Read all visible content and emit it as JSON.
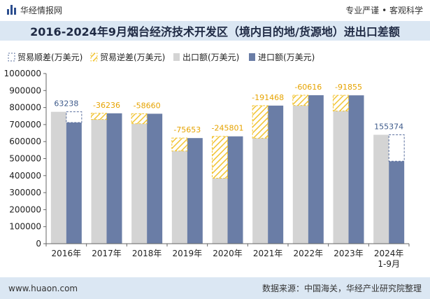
{
  "header": {
    "brand": "华经情报网",
    "tagline": "专业严谨 • 客观科学"
  },
  "footer": {
    "website": "www.huaon.com",
    "source": "数据来源：中国海关，华经产业研究院整理"
  },
  "colors": {
    "export": "#d4d4d4",
    "import": "#6a7da6",
    "surplus_border": "#5a6f9e",
    "deficit_hatch": "#f2c433"
  },
  "chart_data": {
    "type": "bar",
    "title": "2016-2024年9月烟台经济技术开发区（境内目的地/货源地）进出口差额",
    "categories": [
      "2016年",
      "2017年",
      "2018年",
      "2019年",
      "2020年",
      "2021年",
      "2022年",
      "2023年",
      "2024年\n1-9月"
    ],
    "series": [
      {
        "name": "出口额(万美元)",
        "values": [
          775000,
          730000,
          705000,
          545000,
          385000,
          620000,
          812000,
          780000,
          640000
        ]
      },
      {
        "name": "进口额(万美元)",
        "values": [
          711762,
          766236,
          763660,
          620653,
          630801,
          811468,
          872616,
          871855,
          484626
        ]
      }
    ],
    "balance_series": [
      {
        "name": "贸易顺差(万美元)",
        "type": "surplus"
      },
      {
        "name": "贸易逆差(万美元)",
        "type": "deficit"
      }
    ],
    "balance_labels": [
      "63238",
      "-36236",
      "-58660",
      "-75653",
      "-245801",
      "-191468",
      "-60616",
      "-91855",
      "155374"
    ],
    "ylim": [
      0,
      1000000
    ],
    "yticks": [
      0,
      100000,
      200000,
      300000,
      400000,
      500000,
      600000,
      700000,
      800000,
      900000,
      1000000
    ],
    "legend_position": "top-left",
    "grid": false
  }
}
